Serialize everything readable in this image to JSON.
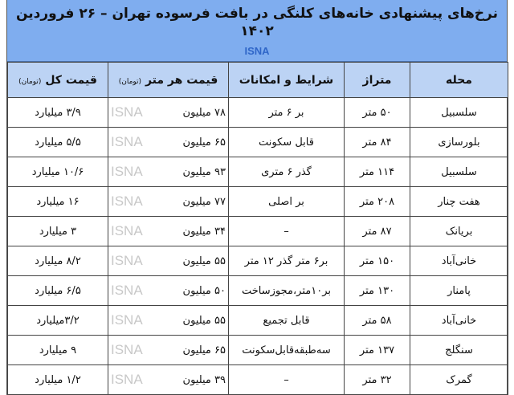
{
  "title": "نرخ‌های پیشنهادی خانه‌های کلنگی در بافت فرسوده تهران – ۲۶ فروردین ۱۴۰۲",
  "source": "ISNA",
  "watermark": "ISNA",
  "colors": {
    "title_band": "#7fadef",
    "header_row": "#bcd3f4",
    "source_text": "#2f66c8"
  },
  "columns": [
    {
      "label": "محله",
      "unit": ""
    },
    {
      "label": "متراژ",
      "unit": ""
    },
    {
      "label": "شرایط و امکانات",
      "unit": ""
    },
    {
      "label": "قیمت هر متر",
      "unit": "(تومان)"
    },
    {
      "label": "قیمت کل",
      "unit": "(تومان)"
    }
  ],
  "rows": [
    [
      "سلسبیل",
      "۵۰ متر",
      "بر ۶ متر",
      "۷۸ میلیون",
      "۳/۹ میلیارد"
    ],
    [
      "بلورسازی",
      "۸۴ متر",
      "قابل سکونت",
      "۶۵ میلیون",
      "۵/۵ میلیارد"
    ],
    [
      "سلسبیل",
      "۱۱۴ متر",
      "گذر ۶ متری",
      "۹۳ میلیون",
      "۱۰/۶ میلیارد"
    ],
    [
      "هفت چنار",
      "۲۰۸ متر",
      "بر اصلی",
      "۷۷ میلیون",
      "۱۶ میلیارد"
    ],
    [
      "بریانک",
      "۸۷ متر",
      "–",
      "۳۴ میلیون",
      "۳ میلیارد"
    ],
    [
      "خانی‌آباد",
      "۱۵۰ متر",
      "بر۶ متر گذر ۱۲ متر",
      "۵۵ میلیون",
      "۸/۲ میلیارد"
    ],
    [
      "پامنار",
      "۱۳۰ متر",
      "بر۱۰متر،مجوزساخت",
      "۵۰ میلیون",
      "۶/۵ میلیارد"
    ],
    [
      "خانی‌آباد",
      "۵۸ متر",
      "قابل تجمیع",
      "۵۵ میلیون",
      "۳/۲میلیارد"
    ],
    [
      "سنگلج",
      "۱۳۷ متر",
      "سه‌طبقه‌قابل‌سکونت",
      "۶۵ میلیون",
      "۹ میلیارد"
    ],
    [
      "گمرک",
      "۳۲ متر",
      "–",
      "۳۹ میلیون",
      "۱/۲ میلیارد"
    ]
  ]
}
